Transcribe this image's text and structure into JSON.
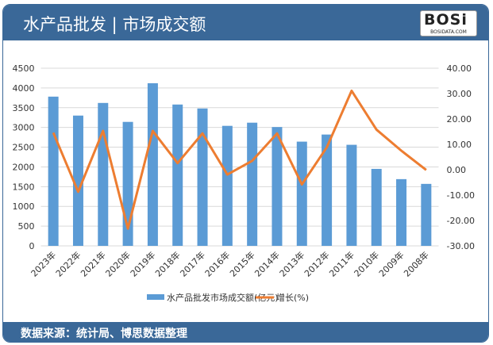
{
  "header": {
    "title": "水产品批发 | 市场成交额",
    "logo_text": "BOSi",
    "logo_sub": "BOSIDATA.COM"
  },
  "footer": {
    "source": "数据来源：统计局、博思数据整理"
  },
  "colors": {
    "bar": "#5b9bd5",
    "line": "#ed7d31",
    "header": "#3a6898",
    "grid": "#d9d9d9"
  },
  "chart_data": {
    "type": "bar+line",
    "categories": [
      "2023年",
      "2022年",
      "2021年",
      "2020年",
      "2019年",
      "2018年",
      "2017年",
      "2016年",
      "2015年",
      "2014年",
      "2013年",
      "2012年",
      "2011年",
      "2010年",
      "2009年",
      "2008年"
    ],
    "series": [
      {
        "name": "水产品批发市场成交额(亿元)",
        "type": "bar",
        "axis": "left",
        "values": [
          3780,
          3300,
          3620,
          3140,
          4120,
          3580,
          3480,
          3040,
          3120,
          3010,
          2640,
          2820,
          2560,
          1950,
          1690,
          1570
        ]
      },
      {
        "name": "增长(%)",
        "type": "line",
        "axis": "right",
        "values": [
          14.6,
          -8.7,
          15.3,
          -23.2,
          15.3,
          2.6,
          14.3,
          -1.9,
          3.5,
          14.3,
          -5.8,
          8.8,
          31.1,
          15.8,
          7.5,
          -0.1
        ]
      }
    ],
    "y_left": {
      "range": [
        0,
        4500
      ],
      "ticks": [
        "0",
        "500",
        "1000",
        "1500",
        "2000",
        "2500",
        "3000",
        "3500",
        "4000",
        "4500"
      ]
    },
    "y_right": {
      "range": [
        -30,
        40
      ],
      "ticks": [
        "-30.00",
        "-20.00",
        "-10.00",
        "0.00",
        "10.00",
        "20.00",
        "30.00",
        "40.00"
      ]
    },
    "grid": true,
    "legend": "bottom"
  }
}
